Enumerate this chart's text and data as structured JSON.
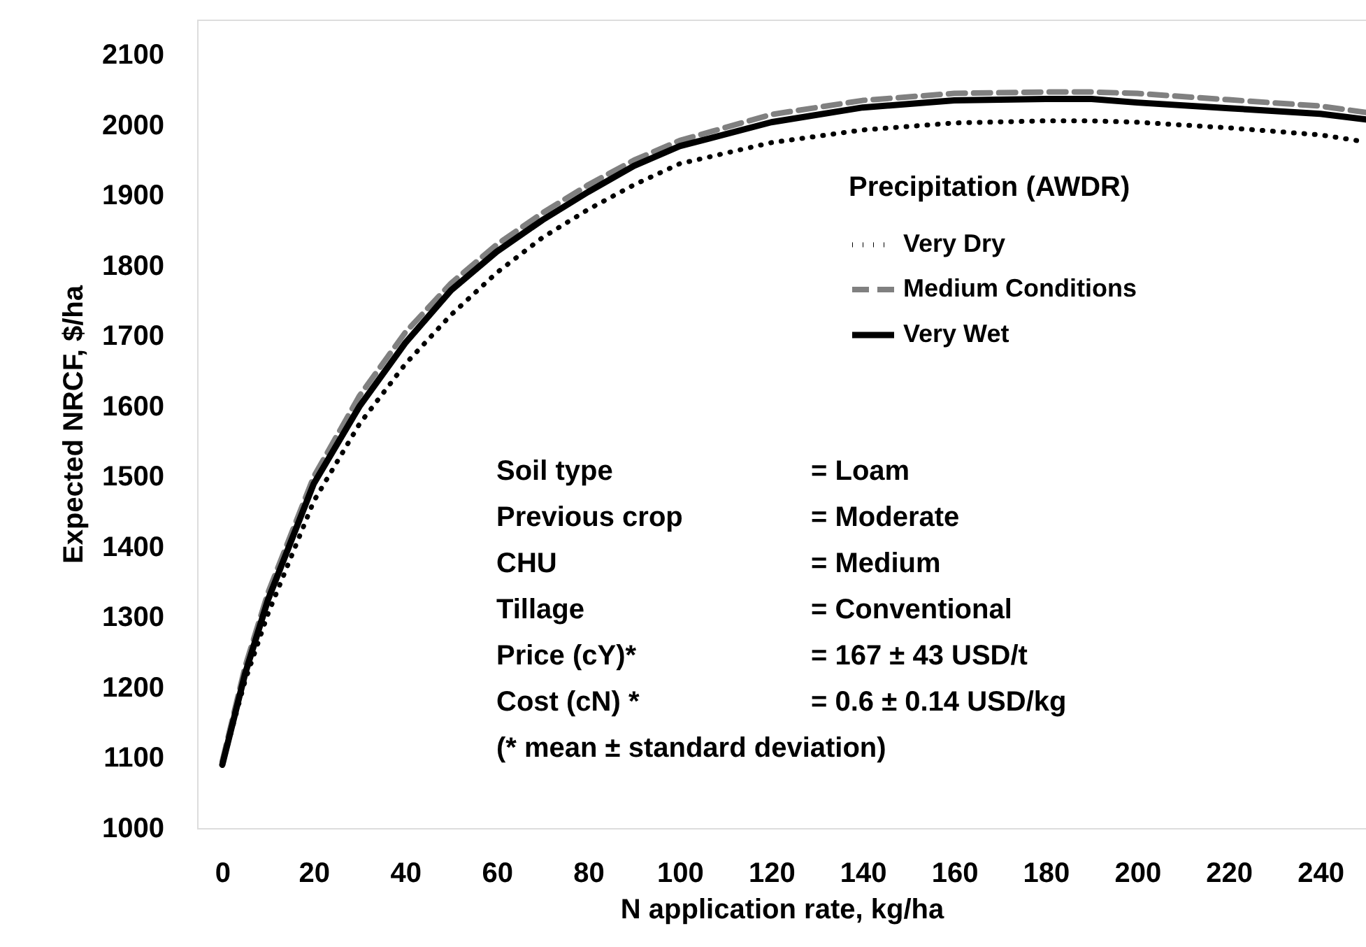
{
  "chart_data": {
    "type": "line",
    "xlabel": "N application rate, kg/ha",
    "ylabel": "Expected NRCF,  $/ha",
    "legend_title": "Precipitation (AWDR)",
    "x": [
      0,
      5,
      10,
      20,
      30,
      40,
      50,
      60,
      70,
      80,
      90,
      100,
      120,
      140,
      160,
      180,
      190,
      200,
      220,
      240,
      250
    ],
    "series": [
      {
        "name": "Very Dry",
        "color": "#000000",
        "line_style": "dotted",
        "values": [
          1090,
          1210,
          1305,
          1465,
          1575,
          1660,
          1730,
          1790,
          1840,
          1880,
          1915,
          1945,
          1975,
          1993,
          2003,
          2006,
          2006,
          2004,
          1996,
          1986,
          1976
        ]
      },
      {
        "name": "Medium Conditions",
        "color": "#808080",
        "line_style": "dashed",
        "values": [
          1095,
          1230,
          1335,
          1500,
          1615,
          1705,
          1775,
          1830,
          1875,
          1915,
          1950,
          1978,
          2015,
          2035,
          2045,
          2047,
          2047,
          2045,
          2036,
          2027,
          2018
        ]
      },
      {
        "name": "Very Wet",
        "color": "#000000",
        "line_style": "solid",
        "values": [
          1090,
          1220,
          1325,
          1490,
          1600,
          1690,
          1765,
          1820,
          1865,
          1905,
          1942,
          1970,
          2004,
          2025,
          2035,
          2037,
          2037,
          2032,
          2024,
          2016,
          2008
        ]
      }
    ],
    "xlim": [
      -5.5,
      250
    ],
    "xticks": [
      0,
      20,
      40,
      60,
      80,
      100,
      120,
      140,
      160,
      180,
      200,
      220,
      240
    ],
    "ylim": [
      1000,
      2150
    ],
    "yticks": [
      1000,
      1100,
      1200,
      1300,
      1400,
      1500,
      1600,
      1700,
      1800,
      1900,
      2000,
      2100
    ],
    "grid": false,
    "legend": "top right",
    "marker": "none",
    "annotations": [
      "Soil type = Loam",
      "Previous crop = Moderate",
      "CHU = Medium",
      "Tillage = Conventional",
      "Price (cY)* = 167 ± 43 USD/t",
      "Cost (cN) * = 0.6 ± 0.14 USD/kg",
      "(* mean ± standard deviation)"
    ]
  }
}
